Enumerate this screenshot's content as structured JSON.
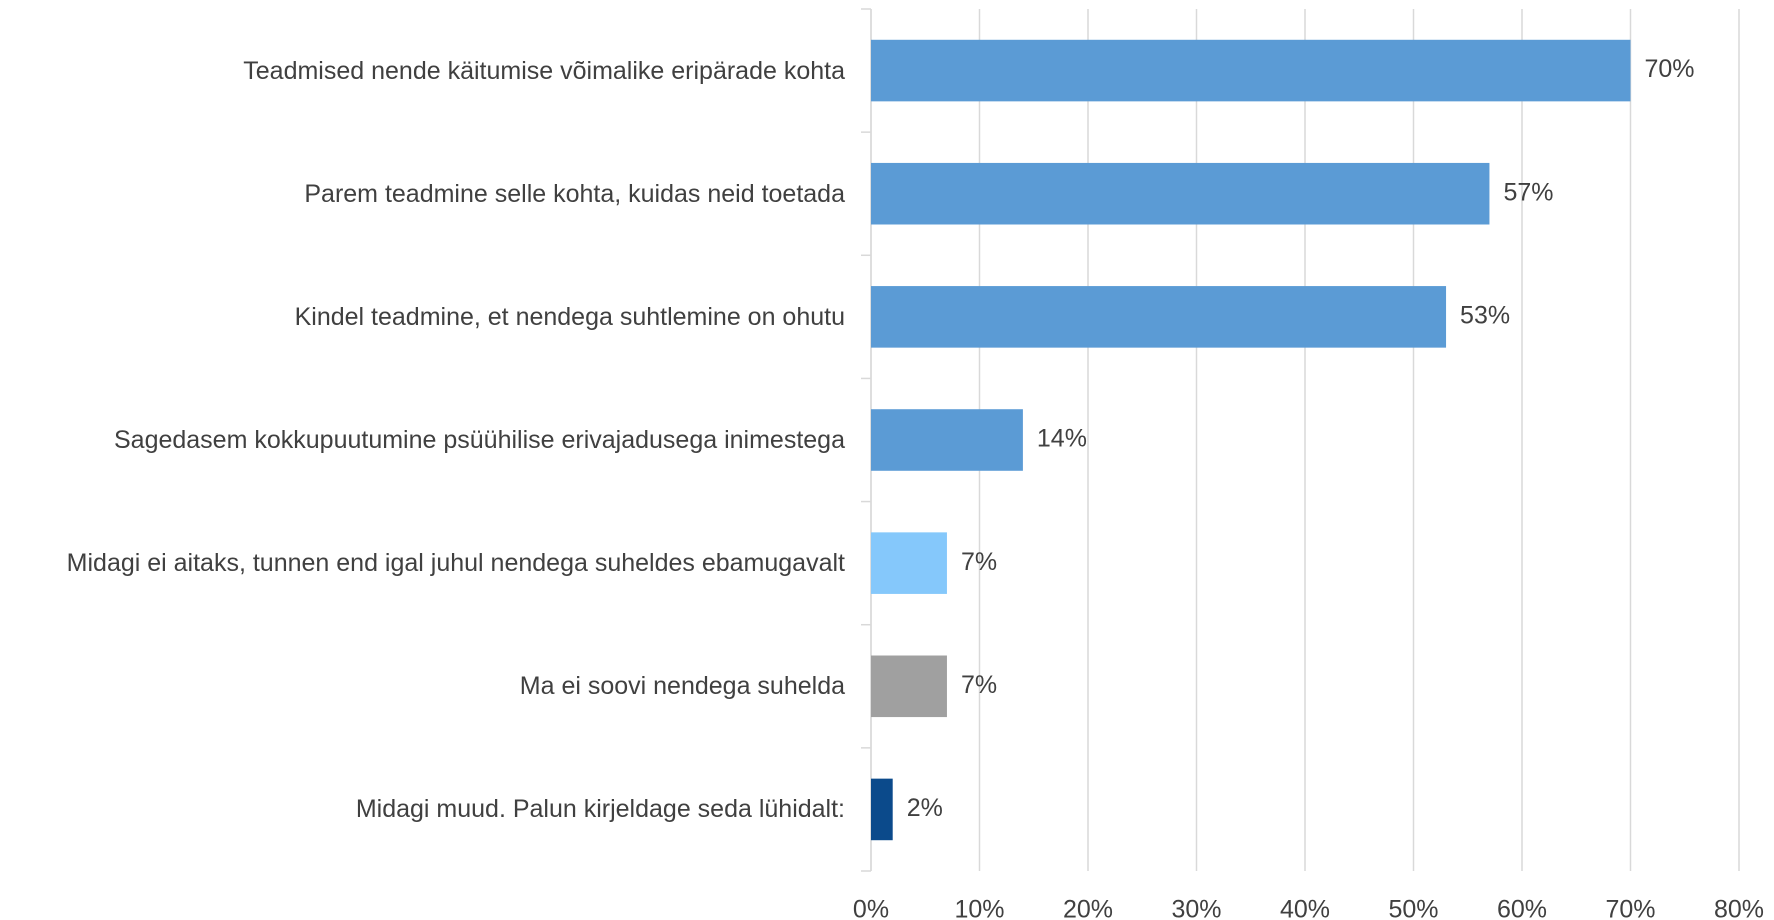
{
  "chart_data": {
    "type": "bar",
    "orientation": "horizontal",
    "categories": [
      "Teadmised nende käitumise võimalike eripärade kohta",
      "Parem teadmine selle kohta, kuidas neid toetada",
      "Kindel teadmine, et nendega suhtlemine on ohutu",
      "Sagedasem kokkupuutumine psüühilise erivajadusega inimestega",
      "Midagi ei aitaks, tunnen end igal juhul nendega suheldes ebamugavalt",
      "Ma ei soovi nendega suhelda",
      "Midagi muud. Palun kirjeldage seda lühidalt:"
    ],
    "values": [
      70,
      57,
      53,
      14,
      7,
      7,
      2
    ],
    "value_labels": [
      "70%",
      "57%",
      "53%",
      "14%",
      "7%",
      "7%",
      "2%"
    ],
    "colors": [
      "#5b9bd5",
      "#5b9bd5",
      "#5b9bd5",
      "#5b9bd5",
      "#85c8fb",
      "#a0a0a0",
      "#0b4a8b"
    ],
    "xlim": [
      0,
      80
    ],
    "xticks": [
      {
        "value": 0,
        "label": "0%"
      },
      {
        "value": 10,
        "label": "10%"
      },
      {
        "value": 20,
        "label": "20%"
      },
      {
        "value": 30,
        "label": "30%"
      },
      {
        "value": 40,
        "label": "40%"
      },
      {
        "value": 50,
        "label": "50%"
      },
      {
        "value": 60,
        "label": "60%"
      },
      {
        "value": 70,
        "label": "70%"
      },
      {
        "value": 80,
        "label": "80%"
      }
    ],
    "grid": true
  }
}
